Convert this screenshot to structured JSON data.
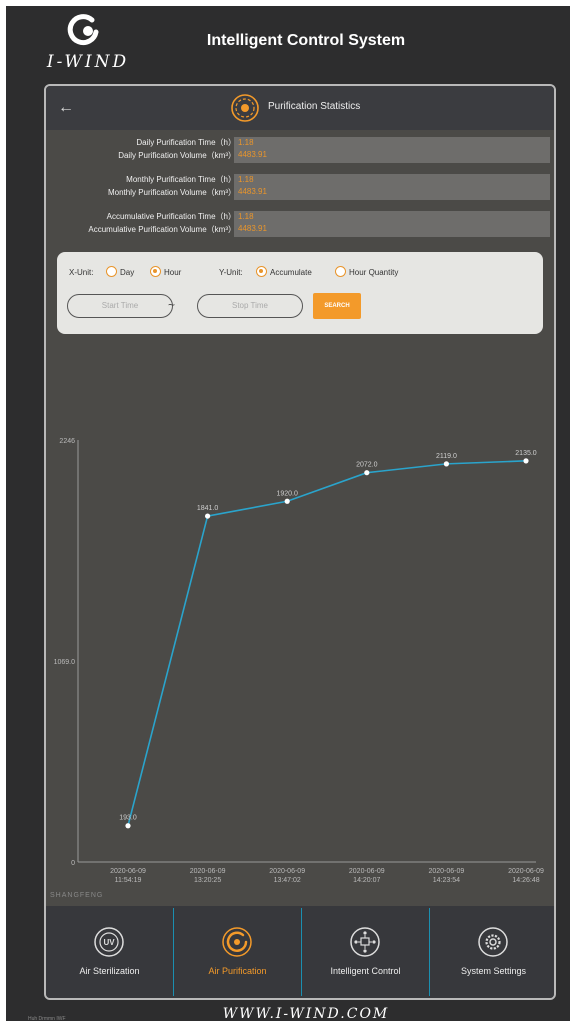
{
  "brand": {
    "name": "I-WIND",
    "title": "Intelligent Control System",
    "url": "WWW.I-WIND.COM",
    "footnote": "Huh Drmmn IWF"
  },
  "page": {
    "title": "Purification Statistics"
  },
  "stats": [
    {
      "time_label": "Daily Purification Time（h）",
      "volume_label": "Daily Purification Volume（km³）",
      "time_value": "1.18",
      "volume_value": "4483.91"
    },
    {
      "time_label": "Monthly Purification Time（h）",
      "volume_label": "Monthly Purification Volume（km³）",
      "time_value": "1.18",
      "volume_value": "4483.91"
    },
    {
      "time_label": "Accumulative Purification Time（h）",
      "volume_label": "Accumulative Purification Volume（km³）",
      "time_value": "1.18",
      "volume_value": "4483.91"
    }
  ],
  "filters": {
    "x_unit_label": "X-Unit:",
    "x_options": [
      {
        "label": "Day",
        "selected": false
      },
      {
        "label": "Hour",
        "selected": true
      }
    ],
    "y_unit_label": "Y-Unit:",
    "y_options": [
      {
        "label": "Accumulate",
        "selected": true
      },
      {
        "label": "Hour Quantity",
        "selected": false
      }
    ],
    "start_placeholder": "Start Time",
    "range_sep": "~",
    "stop_placeholder": "Stop Time",
    "search_label": "SEARCH"
  },
  "chart_data": {
    "type": "line",
    "x": [
      "2020-06-09 11:54:19",
      "2020-06-09 13:20:25",
      "2020-06-09 13:47:02",
      "2020-06-09 14:20:07",
      "2020-06-09 14:23:54",
      "2020-06-09 14:26:48"
    ],
    "x_dates": [
      "2020-06-09",
      "2020-06-09",
      "2020-06-09",
      "2020-06-09",
      "2020-06-09",
      "2020-06-09"
    ],
    "x_times": [
      "11:54:19",
      "13:20:25",
      "13:47:02",
      "14:20:07",
      "14:23:54",
      "14:26:48"
    ],
    "values": [
      193.0,
      1841.0,
      1920.0,
      2072.0,
      2119.0,
      2135.0
    ],
    "value_labels": [
      "193.0",
      "1841.0",
      "1920.0",
      "2072.0",
      "2119.0",
      "2135.0"
    ],
    "y_ticks": [
      "0",
      "1069.0",
      "2246"
    ],
    "ylim": [
      0,
      2246
    ],
    "grid": false,
    "line_color": "#2aa4cc"
  },
  "watermark": "SHANGFENG",
  "nav": [
    {
      "label": "Air Sterilization",
      "icon": "uv-icon",
      "active": false
    },
    {
      "label": "Air Purification",
      "icon": "purification-icon",
      "active": true
    },
    {
      "label": "Intelligent Control",
      "icon": "network-icon",
      "active": false
    },
    {
      "label": "System Settings",
      "icon": "gear-icon",
      "active": false
    }
  ],
  "colors": {
    "accent": "#f39a2a",
    "line": "#2aa4cc",
    "panel": "#4b4a47"
  }
}
